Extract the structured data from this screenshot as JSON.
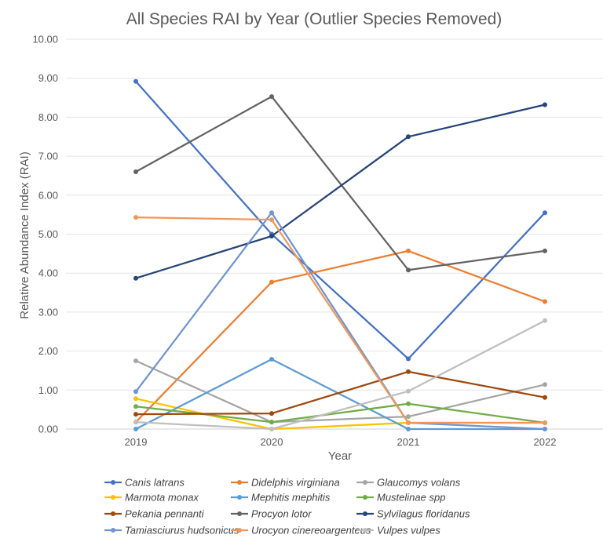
{
  "chart_data": {
    "type": "line",
    "title": "All Species RAI by Year (Outlier Species Removed)",
    "xlabel": "Year",
    "ylabel": "Relative Abundance Index (RAI)",
    "categories": [
      "2019",
      "2020",
      "2021",
      "2022"
    ],
    "ylim": [
      0,
      10
    ],
    "yticks": [
      "0.00",
      "1.00",
      "2.00",
      "3.00",
      "4.00",
      "5.00",
      "6.00",
      "7.00",
      "8.00",
      "9.00",
      "10.00"
    ],
    "grid": true,
    "legend_position": "bottom",
    "series": [
      {
        "name": "Canis latrans",
        "color": "#4472C4",
        "values": [
          8.92,
          5.0,
          1.8,
          5.55
        ]
      },
      {
        "name": "Didelphis virginiana",
        "color": "#ED7D31",
        "values": [
          0.18,
          3.77,
          4.57,
          3.27
        ]
      },
      {
        "name": "Glaucomys volans",
        "color": "#A5A5A5",
        "values": [
          1.75,
          0.18,
          0.32,
          1.14
        ]
      },
      {
        "name": "Marmota monax",
        "color": "#FFC000",
        "values": [
          0.78,
          0.0,
          0.16,
          0.16
        ]
      },
      {
        "name": "Mephitis mephitis",
        "color": "#5B9BD5",
        "values": [
          0.0,
          1.79,
          0.0,
          0.0
        ]
      },
      {
        "name": "Mustelinae spp",
        "color": "#70AD47",
        "values": [
          0.58,
          0.18,
          0.65,
          0.16
        ]
      },
      {
        "name": "Pekania pennanti",
        "color": "#9E480E",
        "values": [
          0.38,
          0.4,
          1.47,
          0.81
        ]
      },
      {
        "name": "Procyon lotor",
        "color": "#636363",
        "values": [
          6.6,
          8.53,
          4.08,
          4.57
        ]
      },
      {
        "name": "Sylvilagus floridanus",
        "color": "#264478",
        "values": [
          3.87,
          4.95,
          7.5,
          8.32
        ]
      },
      {
        "name": "Tamiasciurus hudsonicus",
        "color": "#6F94D0",
        "values": [
          0.96,
          5.55,
          0.16,
          0.0
        ]
      },
      {
        "name": "Urocyon cinereoargenteus",
        "color": "#F1975A",
        "values": [
          5.43,
          5.37,
          0.16,
          0.16
        ]
      },
      {
        "name": "Vulpes vulpes",
        "color": "#BFBFBF",
        "values": [
          0.18,
          0.0,
          0.97,
          2.78
        ]
      }
    ]
  }
}
